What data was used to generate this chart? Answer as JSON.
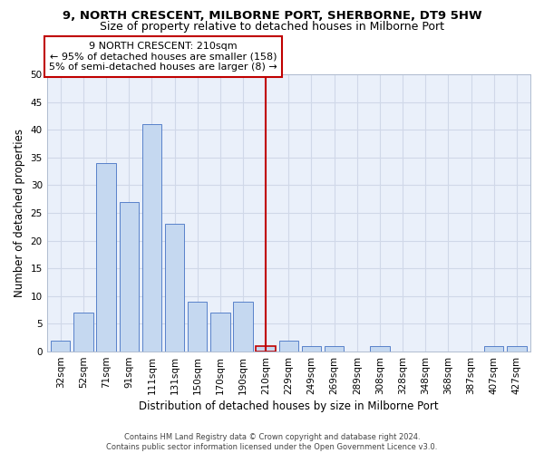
{
  "title": "9, NORTH CRESCENT, MILBORNE PORT, SHERBORNE, DT9 5HW",
  "subtitle": "Size of property relative to detached houses in Milborne Port",
  "xlabel": "Distribution of detached houses by size in Milborne Port",
  "ylabel": "Number of detached properties",
  "footer_line1": "Contains HM Land Registry data © Crown copyright and database right 2024.",
  "footer_line2": "Contains public sector information licensed under the Open Government Licence v3.0.",
  "categories": [
    "32sqm",
    "52sqm",
    "71sqm",
    "91sqm",
    "111sqm",
    "131sqm",
    "150sqm",
    "170sqm",
    "190sqm",
    "210sqm",
    "229sqm",
    "249sqm",
    "269sqm",
    "289sqm",
    "308sqm",
    "328sqm",
    "348sqm",
    "368sqm",
    "387sqm",
    "407sqm",
    "427sqm"
  ],
  "bar_values": [
    2,
    7,
    34,
    27,
    41,
    23,
    9,
    7,
    9,
    1,
    2,
    1,
    1,
    0,
    1,
    0,
    0,
    0,
    0,
    1,
    1
  ],
  "bar_color": "#c5d8f0",
  "bar_edge_color": "#4472c4",
  "highlight_index": 9,
  "highlight_line_color": "#c00000",
  "highlight_box_color": "#c00000",
  "annotation_title": "9 NORTH CRESCENT: 210sqm",
  "annotation_line1": "← 95% of detached houses are smaller (158)",
  "annotation_line2": "5% of semi-detached houses are larger (8) →",
  "ylim": [
    0,
    50
  ],
  "yticks": [
    0,
    5,
    10,
    15,
    20,
    25,
    30,
    35,
    40,
    45,
    50
  ],
  "grid_color": "#d0d8e8",
  "plot_bg_color": "#eaf0fa",
  "title_fontsize": 9.5,
  "subtitle_fontsize": 9,
  "annotation_fontsize": 8,
  "tick_fontsize": 7.5,
  "ylabel_fontsize": 8.5,
  "xlabel_fontsize": 8.5,
  "footer_fontsize": 6
}
